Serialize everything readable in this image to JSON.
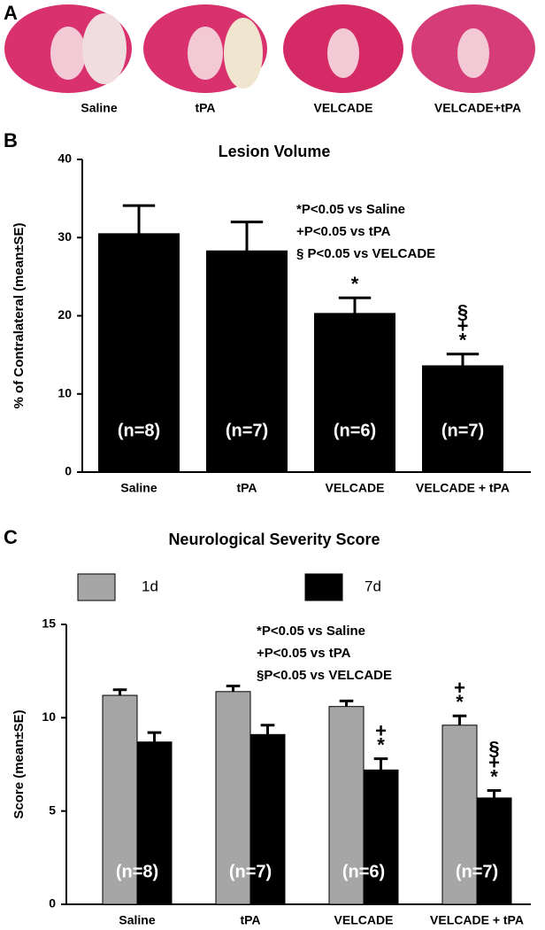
{
  "panel_labels": [
    "A",
    "B",
    "C"
  ],
  "images": {
    "labels": [
      "Saline",
      "tPA",
      "VELCADE",
      "VELCADE+tPA"
    ]
  },
  "chart_data": [
    {
      "type": "bar",
      "title": "Lesion Volume",
      "ylabel": "% of Contralateral (mean±SE)",
      "categories": [
        "Saline",
        "tPA",
        "VELCADE",
        "VELCADE + tPA"
      ],
      "values": [
        30.5,
        28.3,
        20.3,
        13.6
      ],
      "errors": [
        3.6,
        3.7,
        2.0,
        1.5
      ],
      "color": "#000000",
      "markers": [
        [],
        [],
        [
          "*"
        ],
        [
          "§",
          "+",
          "*"
        ]
      ],
      "n_labels": [
        "(n=8)",
        "(n=7)",
        "(n=6)",
        "(n=7)"
      ],
      "notes": [
        "*P<0.05 vs Saline",
        "+P<0.05 vs tPA",
        "§ P<0.05 vs VELCADE"
      ],
      "ylim": [
        0,
        40
      ],
      "yticks": [
        0,
        10,
        20,
        30,
        40
      ]
    },
    {
      "type": "bar",
      "title": "Neurological Severity Score",
      "ylabel": "Score (mean±SE)",
      "categories": [
        "Saline",
        "tPA",
        "VELCADE",
        "VELCADE + tPA"
      ],
      "series": [
        {
          "name": "1d",
          "color": "#a6a6a6",
          "values": [
            11.2,
            11.4,
            10.6,
            9.6
          ],
          "errors": [
            0.3,
            0.3,
            0.3,
            0.5
          ],
          "markers": [
            [],
            [],
            [],
            [
              "+",
              "*"
            ]
          ]
        },
        {
          "name": "7d",
          "color": "#000000",
          "values": [
            8.7,
            9.1,
            7.2,
            5.7
          ],
          "errors": [
            0.5,
            0.5,
            0.6,
            0.4
          ],
          "markers": [
            [],
            [],
            [
              "+",
              "*"
            ],
            [
              "§",
              "+",
              "*"
            ]
          ]
        }
      ],
      "n_labels": [
        "(n=8)",
        "(n=7)",
        "(n=6)",
        "(n=7)"
      ],
      "notes": [
        "*P<0.05 vs Saline",
        "+P<0.05 vs tPA",
        "§P<0.05 vs VELCADE"
      ],
      "ylim": [
        0,
        15
      ],
      "yticks": [
        0,
        5,
        10,
        15
      ]
    }
  ]
}
